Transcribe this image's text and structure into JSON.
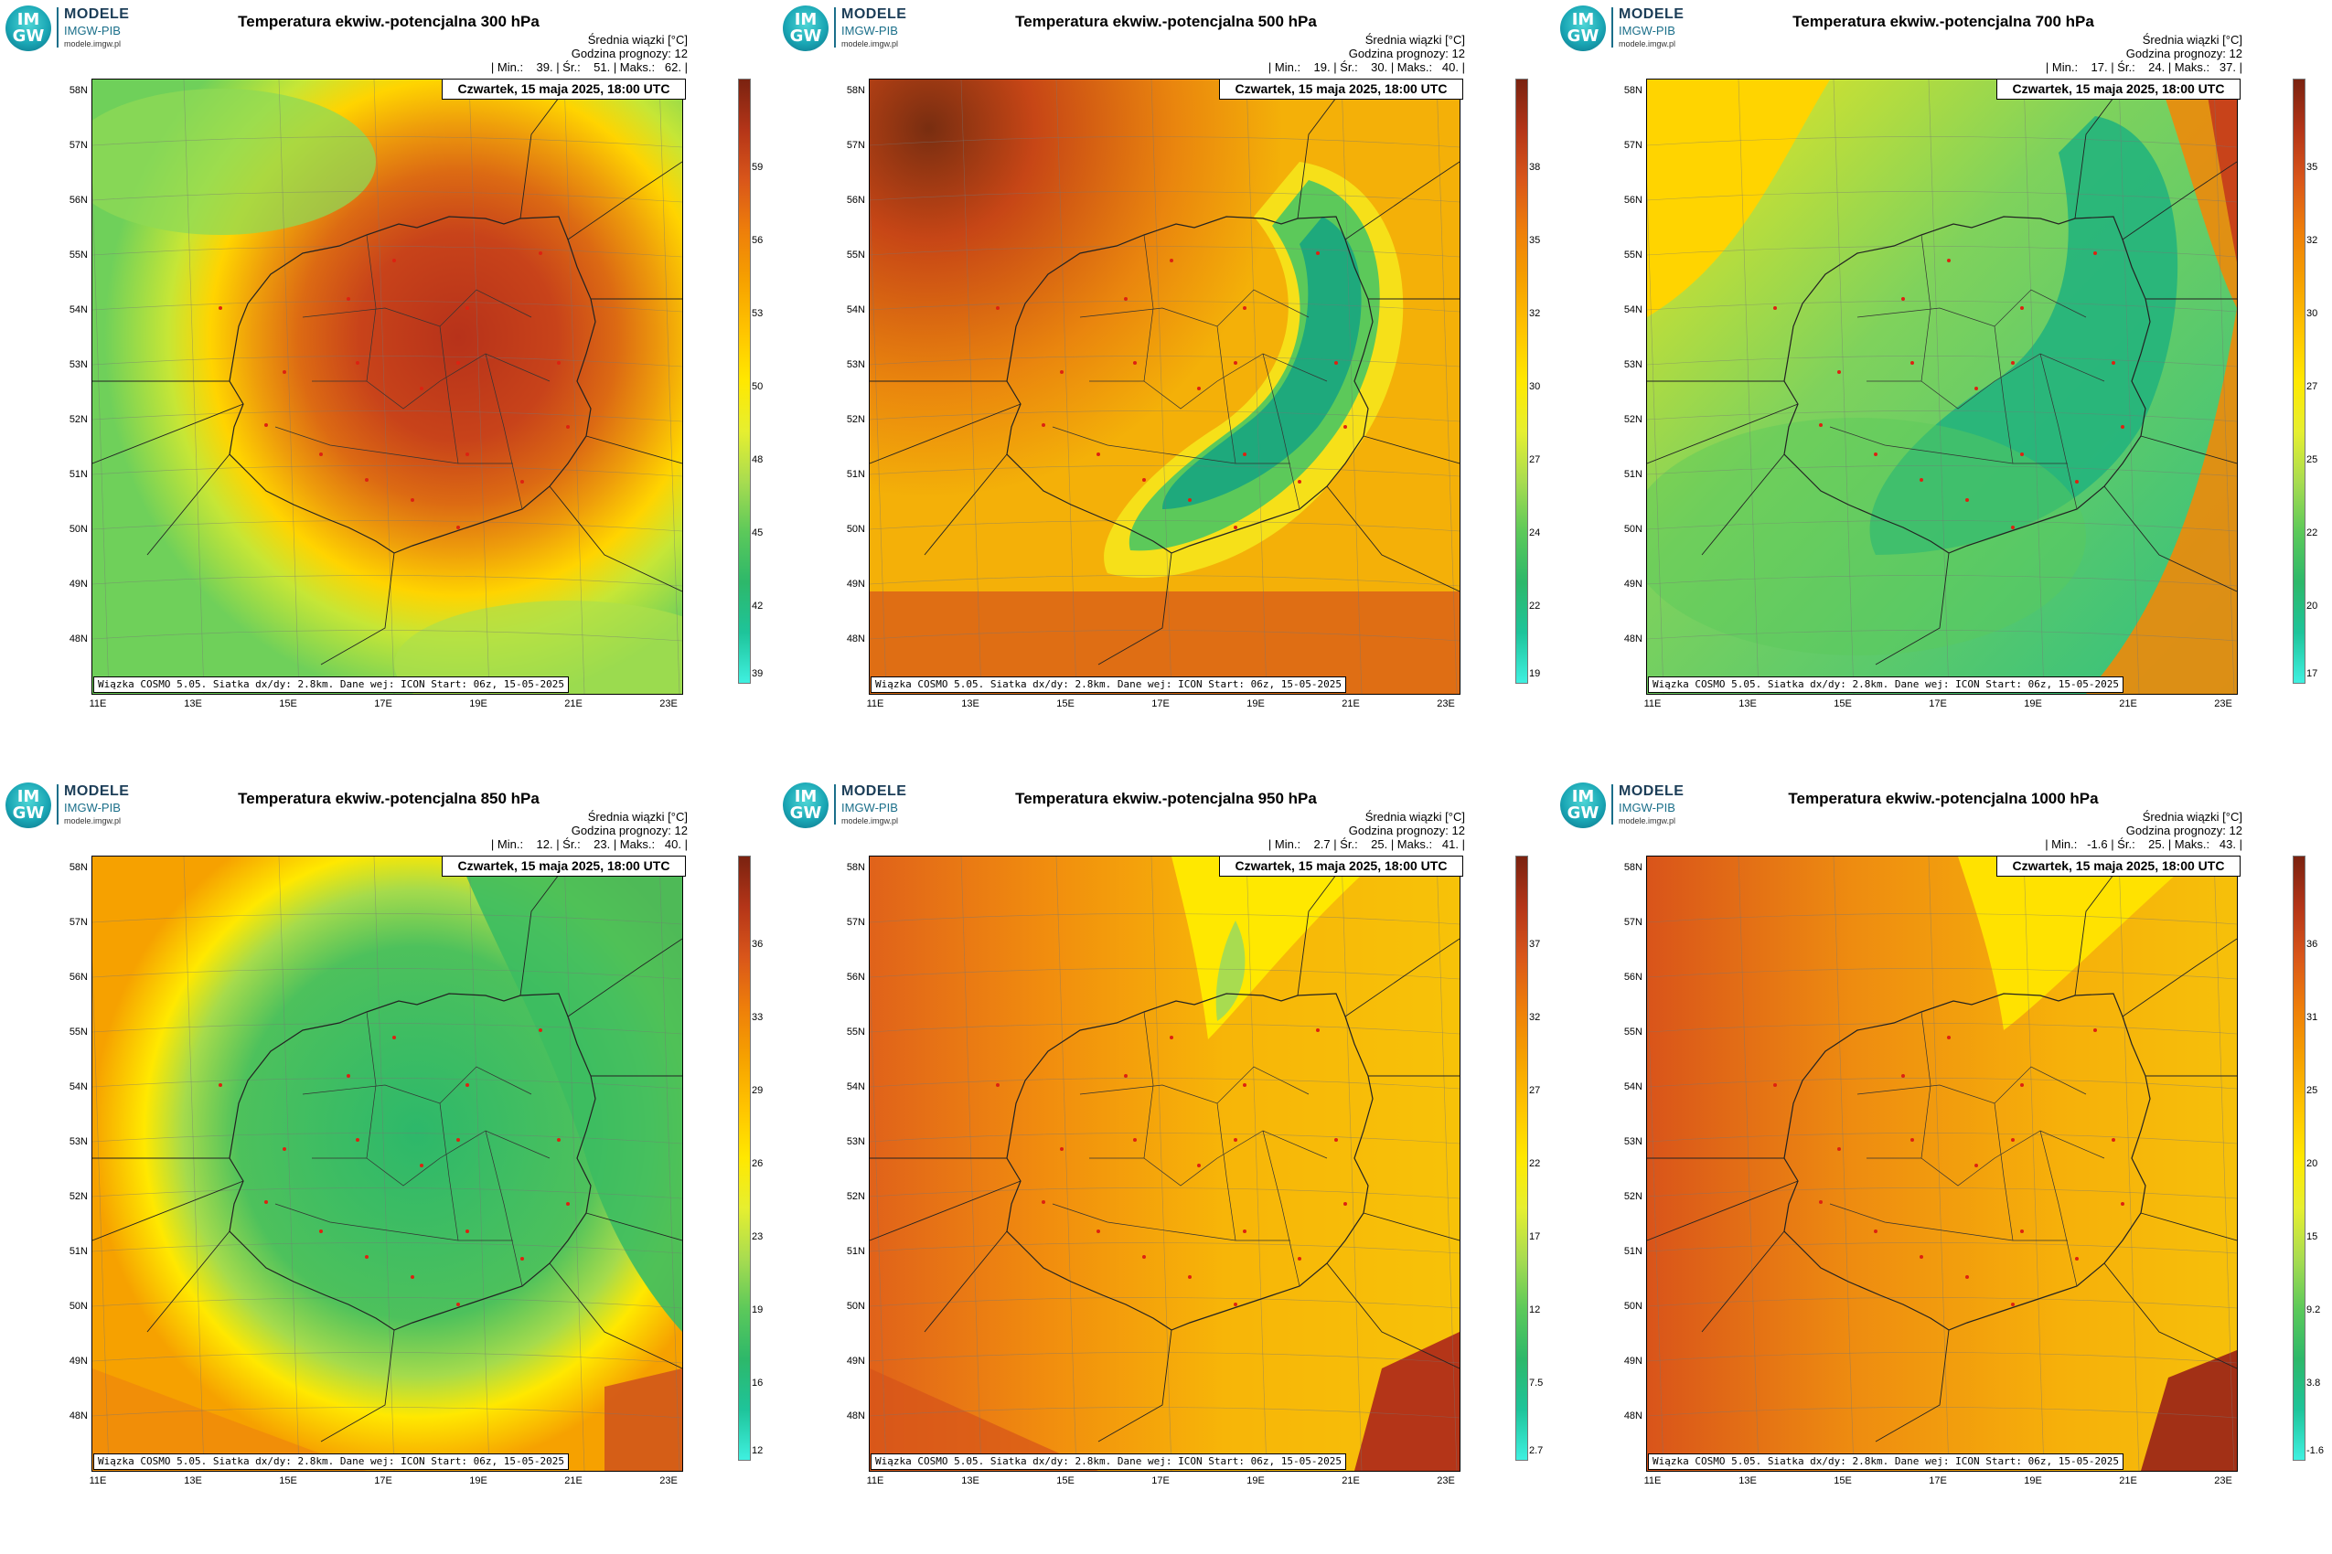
{
  "logo": {
    "badge_top": "IM",
    "badge_bottom": "GW",
    "title": "MODELE",
    "subtitle": "IMGW-PIB",
    "url": "modele.imgw.pl"
  },
  "common": {
    "mean_label": "Średnia wiązki [°C]",
    "forecast_hour": "Godzina prognozy: 12",
    "date": "Czwartek, 15 maja 2025, 18:00 UTC",
    "credit": "Wiązka COSMO 5.05. Siatka dx/dy: 2.8km. Dane wej: ICON Start: 06z, 15-05-2025",
    "lat_labels": [
      "58N",
      "57N",
      "56N",
      "55N",
      "54N",
      "53N",
      "52N",
      "51N",
      "50N",
      "49N",
      "48N"
    ],
    "lon_labels": [
      "11E",
      "13E",
      "15E",
      "17E",
      "19E",
      "21E",
      "23E"
    ]
  },
  "panels": [
    {
      "title": "Temperatura ekwiw.-potencjalna 300 hPa",
      "stats": "| Min.:    39. | Śr.:    51. | Maks.:   62. |",
      "colorbar_ticks": [
        "59",
        "56",
        "53",
        "50",
        "48",
        "45",
        "42",
        "39"
      ],
      "field": "p300"
    },
    {
      "title": "Temperatura ekwiw.-potencjalna 500 hPa",
      "stats": "| Min.:    19. | Śr.:    30. | Maks.:   40. |",
      "colorbar_ticks": [
        "38",
        "35",
        "32",
        "30",
        "27",
        "24",
        "22",
        "19"
      ],
      "field": "p500"
    },
    {
      "title": "Temperatura ekwiw.-potencjalna 700 hPa",
      "stats": "| Min.:    17. | Śr.:    24. | Maks.:   37. |",
      "colorbar_ticks": [
        "35",
        "32",
        "30",
        "27",
        "25",
        "22",
        "20",
        "17"
      ],
      "field": "p700"
    },
    {
      "title": "Temperatura ekwiw.-potencjalna 850 hPa",
      "stats": "| Min.:    12. | Śr.:    23. | Maks.:   40. |",
      "colorbar_ticks": [
        "36",
        "33",
        "29",
        "26",
        "23",
        "19",
        "16",
        "12"
      ],
      "field": "p850"
    },
    {
      "title": "Temperatura ekwiw.-potencjalna 950 hPa",
      "stats": "| Min.:    2.7 | Śr.:    25. | Maks.:   41. |",
      "colorbar_ticks": [
        "37",
        "32",
        "27",
        "22",
        "17",
        "12",
        "7.5",
        "2.7"
      ],
      "field": "p950"
    },
    {
      "title": "Temperatura ekwiw.-potencjalna 1000 hPa",
      "stats": "| Min.:   -1.6 | Śr.:    25. | Maks.:   43. |",
      "colorbar_ticks": [
        "36",
        "31",
        "25",
        "20",
        "15",
        "9.2",
        "3.8",
        "-1.6"
      ],
      "field": "p1000"
    }
  ],
  "colors": {
    "colorbar": [
      "#ffffff00",
      "#3ff0e0",
      "#1ec49a",
      "#2db86a",
      "#5cc95a",
      "#a8dc50",
      "#e6ef30",
      "#ffe800",
      "#ffc400",
      "#f6a100",
      "#ee7e0a",
      "#d9561a",
      "#b43518",
      "#7a2210"
    ]
  }
}
